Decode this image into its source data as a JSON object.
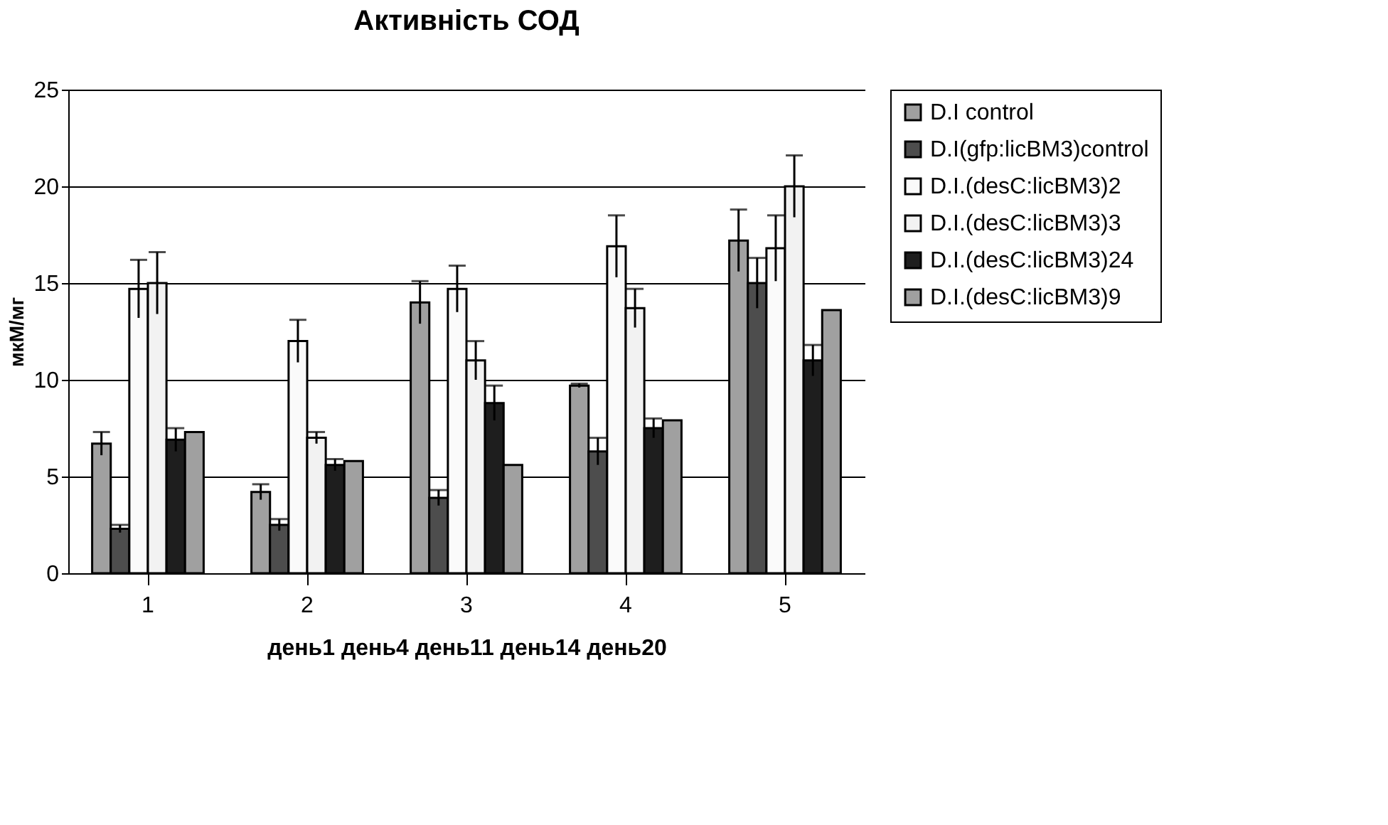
{
  "chart_data": {
    "type": "bar",
    "title": "Активність СОД",
    "ylabel": "мкМ/мг",
    "xlabel": "день1  день4  день11  день14  день20",
    "categories": [
      "1",
      "2",
      "3",
      "4",
      "5"
    ],
    "ylim": [
      0,
      25
    ],
    "yticks": [
      0,
      5,
      10,
      15,
      20,
      25
    ],
    "grid": "y",
    "legend": "right",
    "series": [
      {
        "name": "D.I control",
        "color": "#a0a0a0",
        "values": [
          6.7,
          4.2,
          14.0,
          9.7,
          17.2
        ],
        "errors": [
          0.6,
          0.4,
          1.1,
          0.1,
          1.6
        ]
      },
      {
        "name": "D.I(gfp:licBM3)control",
        "color": "#4d4d4d",
        "values": [
          2.3,
          2.5,
          3.9,
          6.3,
          15.0
        ],
        "errors": [
          0.2,
          0.3,
          0.4,
          0.7,
          1.3
        ]
      },
      {
        "name": "D.I.(desC:licBM3)2",
        "color": "#fafafa",
        "values": [
          14.7,
          12.0,
          14.7,
          16.9,
          16.8
        ],
        "errors": [
          1.5,
          1.1,
          1.2,
          1.6,
          1.7
        ]
      },
      {
        "name": "D.I.(desC:licBM3)3",
        "color": "#f2f2f2",
        "values": [
          15.0,
          7.0,
          11.0,
          13.7,
          20.0
        ],
        "errors": [
          1.6,
          0.3,
          1.0,
          1.0,
          1.6
        ]
      },
      {
        "name": "D.I.(desC:licBM3)24",
        "color": "#1e1e1e",
        "values": [
          6.9,
          5.6,
          8.8,
          7.5,
          11.0
        ],
        "errors": [
          0.6,
          0.3,
          0.9,
          0.5,
          0.8
        ]
      },
      {
        "name": "D.I.(desC:licBM3)9",
        "color": "#a0a0a0",
        "values": [
          7.3,
          5.8,
          5.6,
          7.9,
          13.6
        ]
      }
    ]
  }
}
